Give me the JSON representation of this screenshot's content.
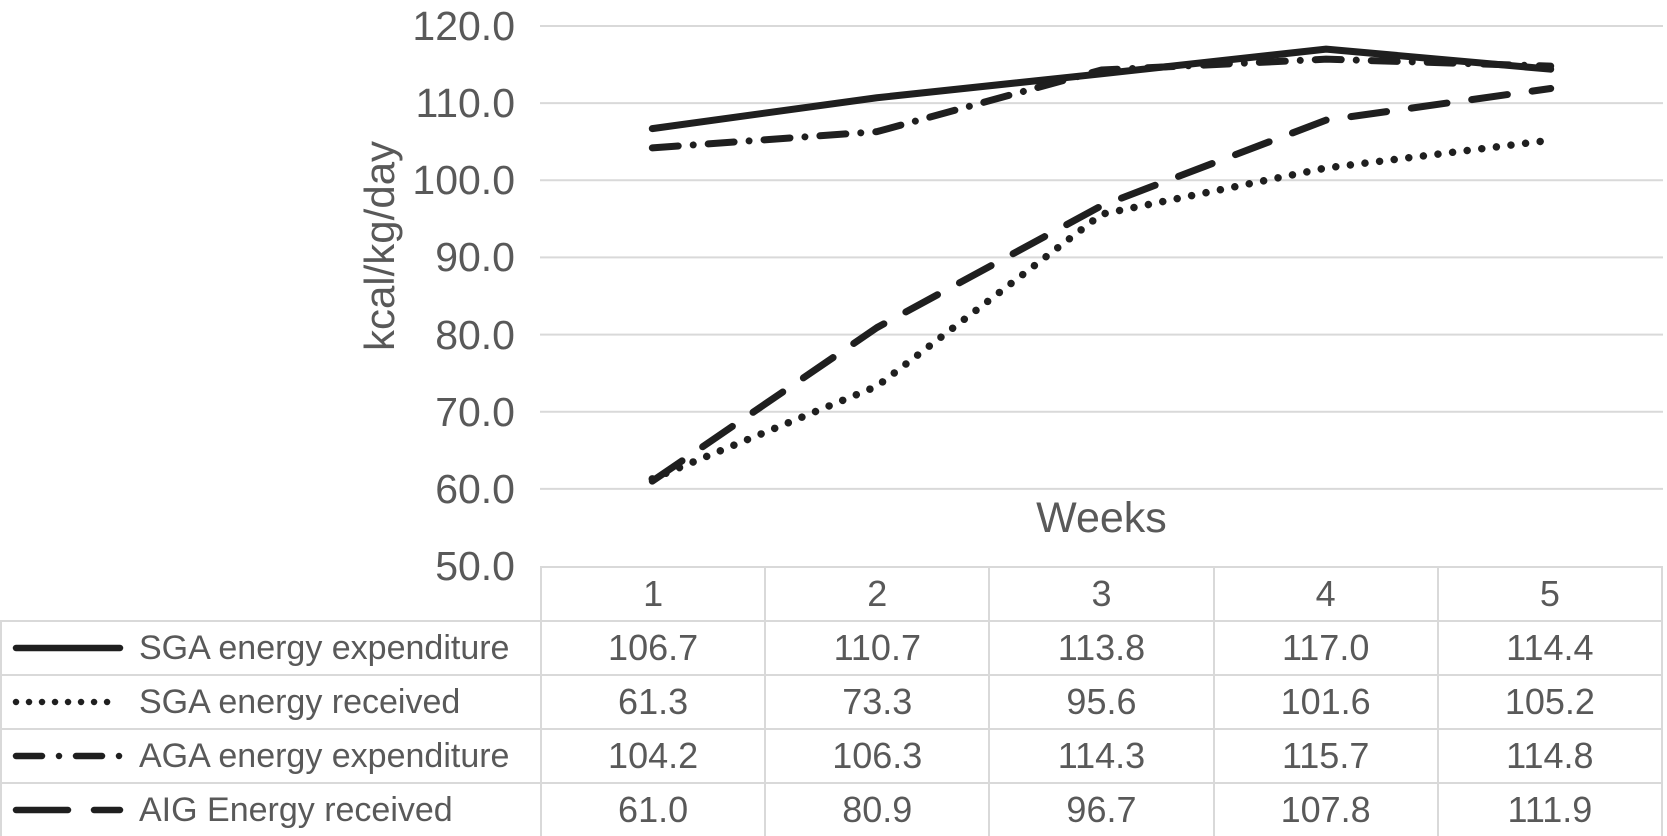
{
  "chart_data": {
    "type": "line",
    "title": "",
    "xlabel": "Weeks",
    "ylabel": "kcal/kg/day",
    "ylim": [
      50.0,
      120.0
    ],
    "ytick_values": [
      120,
      110,
      100,
      90,
      80,
      70,
      60,
      50
    ],
    "ytick_labels": [
      "120.0",
      "110.0",
      "100.0",
      "90.0",
      "80.0",
      "70.0",
      "60.0",
      "50.0"
    ],
    "grid": "horizontal",
    "legend_position": "data-table-left-column",
    "categories": [
      "1",
      "2",
      "3",
      "4",
      "5"
    ],
    "series": [
      {
        "name": "SGA energy expenditure",
        "line_style": "solid",
        "values": [
          106.7,
          110.7,
          113.8,
          117.0,
          114.4
        ],
        "value_labels": [
          "106.7",
          "110.7",
          "113.8",
          "117.0",
          "114.4"
        ]
      },
      {
        "name": "SGA energy received",
        "line_style": "dotted",
        "values": [
          61.3,
          73.3,
          95.6,
          101.6,
          105.2
        ],
        "value_labels": [
          "61.3",
          "73.3",
          "95.6",
          "101.6",
          "105.2"
        ]
      },
      {
        "name": "AGA energy expenditure",
        "line_style": "dash-dot",
        "values": [
          104.2,
          106.3,
          114.3,
          115.7,
          114.8
        ],
        "value_labels": [
          "104.2",
          "106.3",
          "114.3",
          "115.7",
          "114.8"
        ]
      },
      {
        "name": "AIG Energy received",
        "line_style": "long-dash",
        "values": [
          61.0,
          80.9,
          96.7,
          107.8,
          111.9
        ],
        "value_labels": [
          "61.0",
          "80.9",
          "96.7",
          "107.8",
          "111.9"
        ]
      }
    ],
    "colors": {
      "line": "#1f1f1f",
      "grid": "#d9d9d9",
      "text": "#595959",
      "table_border": "#d9d9d9",
      "background": "#ffffff"
    }
  }
}
